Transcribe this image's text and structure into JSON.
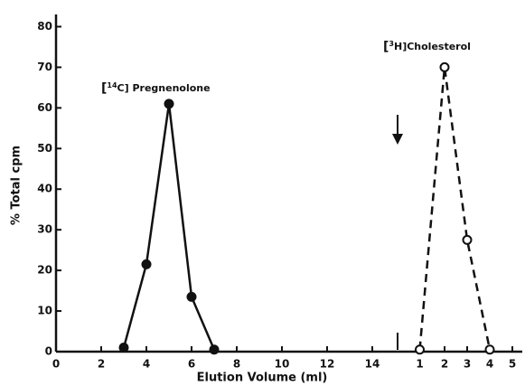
{
  "chart_data": {
    "type": "line",
    "xlabel": "Elution Volume (ml)",
    "ylabel": "% Total cpm",
    "xlim": [
      0,
      20.64
    ],
    "ylim": [
      0,
      83
    ],
    "xticks": [
      0,
      2,
      4,
      6,
      8,
      10,
      12,
      14,
      {
        "value": 16.1,
        "label": "1"
      },
      {
        "value": 17.2,
        "label": "2"
      },
      {
        "value": 18.2,
        "label": "3"
      },
      {
        "value": 19.2,
        "label": "4"
      },
      {
        "value": 20.2,
        "label": "5"
      }
    ],
    "yticks": [
      0,
      10,
      20,
      30,
      40,
      50,
      60,
      70,
      80
    ],
    "series": [
      {
        "color": "#111111",
        "style": "solid",
        "marker": "filled",
        "x": [
          3,
          4,
          5,
          6,
          7
        ],
        "values": [
          1,
          21.5,
          61,
          13.5,
          0.5
        ]
      },
      {
        "color": "#111111",
        "style": "dashed",
        "marker": "open",
        "x": [
          16.1,
          17.2,
          18.2,
          19.2
        ],
        "values": [
          0.5,
          70,
          27.5,
          0.5
        ]
      }
    ],
    "annotations": [
      {
        "pre": "[",
        "sup": "14",
        "post": "C] Pregnenolone"
      },
      {
        "pre": "[",
        "sup": "3",
        "post": "H]Cholesterol"
      }
    ]
  }
}
